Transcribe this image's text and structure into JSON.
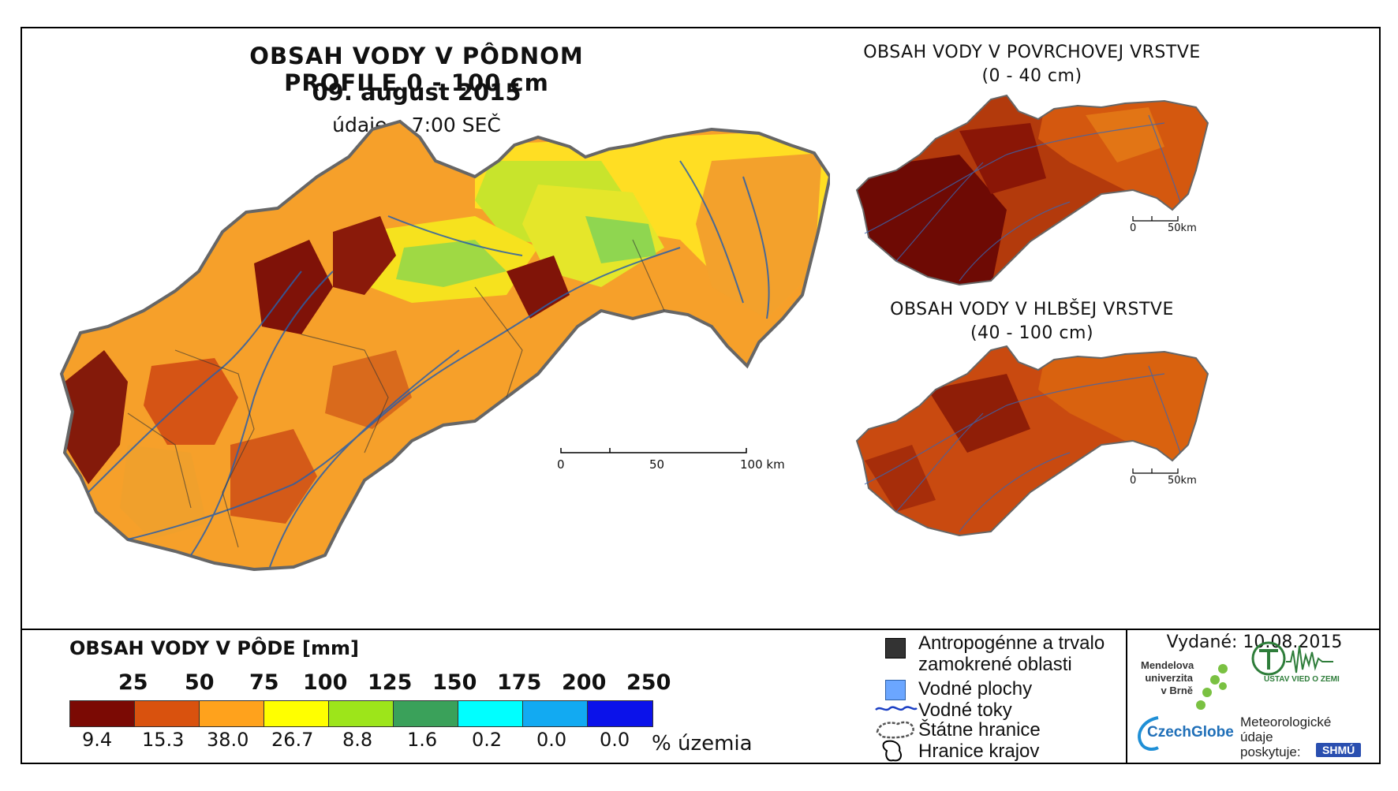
{
  "header": {
    "title": "OBSAH VODY V PÔDNOM PROFILE 0 - 100 cm",
    "date": "09. august 2015",
    "time": "údaje o 7:00 SEČ"
  },
  "insets": {
    "surface": {
      "title_line1": "OBSAH VODY V POVRCHOVEJ VRSTVE",
      "title_line2": "(0 - 40 cm)"
    },
    "deep": {
      "title_line1": "OBSAH VODY V HLBŠEJ VRSTVE",
      "title_line2": "(40 - 100 cm)"
    }
  },
  "scale_main": {
    "labels": [
      "0",
      "50",
      "100 km"
    ]
  },
  "scale_inset": {
    "labels": [
      "0",
      "50km"
    ]
  },
  "legend": {
    "title": "OBSAH VODY V PÔDE [mm]",
    "thresholds": [
      "25",
      "50",
      "75",
      "100",
      "125",
      "150",
      "175",
      "200",
      "250"
    ],
    "colors": [
      "#7b0a04",
      "#d9520e",
      "#ffa21c",
      "#ffff00",
      "#9de51a",
      "#3aa15a",
      "#00ffff",
      "#12aaf2",
      "#0b12ea"
    ],
    "percents": [
      "9.4",
      "15.3",
      "38.0",
      "26.7",
      "8.8",
      "1.6",
      "0.2",
      "0.0",
      "0.0"
    ],
    "percent_unit": "% územia"
  },
  "symbols": {
    "anthropogenic_line1": "Antropogénne a trvalo",
    "anthropogenic_line2": "zamokrené oblasti",
    "water_areas": "Vodné plochy",
    "rivers": "Vodné toky",
    "state_border": "Štátne hranice",
    "region_border": "Hranice krajov"
  },
  "issued": "Vydané: 10.08.2015",
  "logos": {
    "mendel_line1": "Mendelova",
    "mendel_line2": "univerzita",
    "mendel_line3": "v Brně",
    "czechglobe": "CzechGlobe",
    "institute": "ÚSTAV VIED O ZEMI",
    "meteo_line1": "Meteorologické",
    "meteo_line2": "údaje",
    "meteo_line3": "poskytuje:",
    "shmu": "SHMÚ"
  }
}
